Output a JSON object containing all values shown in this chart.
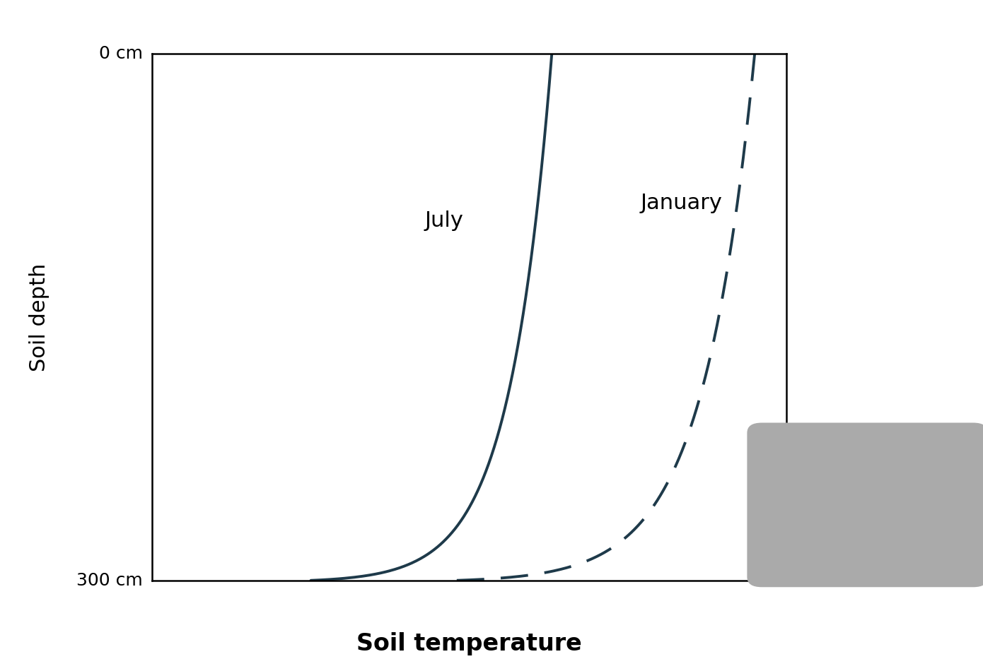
{
  "title": "",
  "xlabel": "Soil temperature",
  "ylabel": "Soil depth",
  "ylabel_top_label": "0 cm",
  "ylabel_bottom_label": "300 cm",
  "line_color": "#1e3a4a",
  "july_label": "July",
  "january_label": "January",
  "xlabel_fontsize": 24,
  "ylabel_fontsize": 22,
  "tick_label_fontsize": 18,
  "annotation_fontsize": 22,
  "background_color": "#ffffff",
  "gray_box_color": "#aaaaaa",
  "line_width": 2.8
}
